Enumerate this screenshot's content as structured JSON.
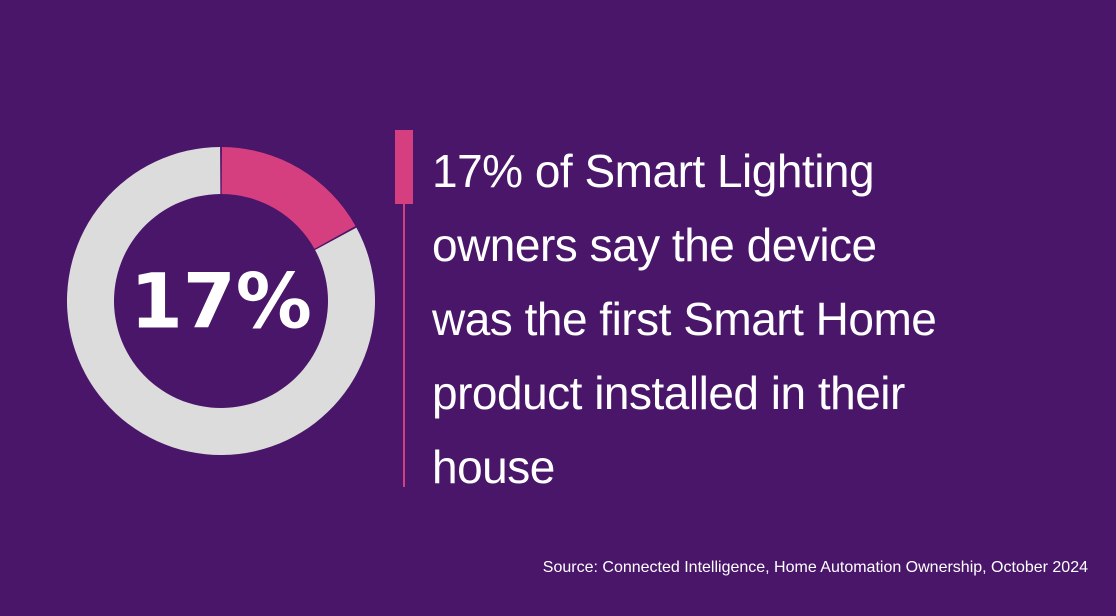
{
  "chart_data": {
    "type": "pie",
    "style": "donut",
    "center_label": "17%",
    "slices": [
      {
        "value": 17,
        "color": "#d63f7f"
      },
      {
        "value": 83,
        "color": "#dddcdc"
      }
    ]
  },
  "headline_lines": [
    "17% of Smart Lighting",
    "owners say the device",
    "was the first Smart Home",
    "product installed in their",
    "house"
  ],
  "source": "Source: Connected Intelligence, Home Automation Ownership, October 2024",
  "colors": {
    "background": "#4a1669",
    "accent": "#d63f7f",
    "remainder": "#dddcdc",
    "text": "#ffffff"
  }
}
